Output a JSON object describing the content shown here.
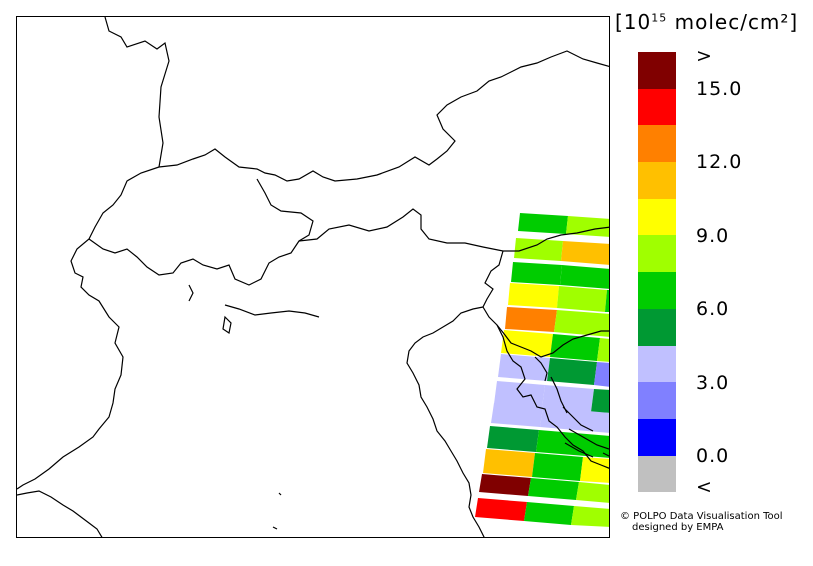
{
  "legend": {
    "unit_prefix": "[10",
    "unit_exp": "15",
    "unit_suffix": " molec/cm²]",
    "colors": [
      "#800000",
      "#ff0000",
      "#ff8000",
      "#ffc000",
      "#ffff00",
      "#a0ff00",
      "#00cc00",
      "#009933",
      "#c0c0ff",
      "#8080ff",
      "#0000ff",
      "#c0c0c0"
    ],
    "ticks": [
      ">",
      "15.0",
      "12.0",
      "9.0",
      "6.0",
      "3.0",
      "0.0",
      "<"
    ]
  },
  "credit": {
    "line1": "© POLPO Data Visualisation Tool",
    "line2": "designed by EMPA"
  }
}
